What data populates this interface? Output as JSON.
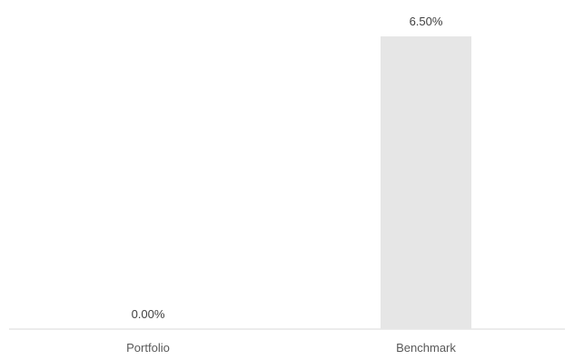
{
  "chart_data": {
    "type": "bar",
    "categories": [
      "Portfolio",
      "Benchmark"
    ],
    "values": [
      0.0,
      6.5
    ],
    "value_labels": [
      "0.00%",
      "6.50%"
    ],
    "ylim": [
      0,
      6.5
    ],
    "grid": false,
    "colors": {
      "bar": "#e6e6e6",
      "axis": "#d9d9d9",
      "label_text": "#404040",
      "category_text": "#595959"
    }
  }
}
